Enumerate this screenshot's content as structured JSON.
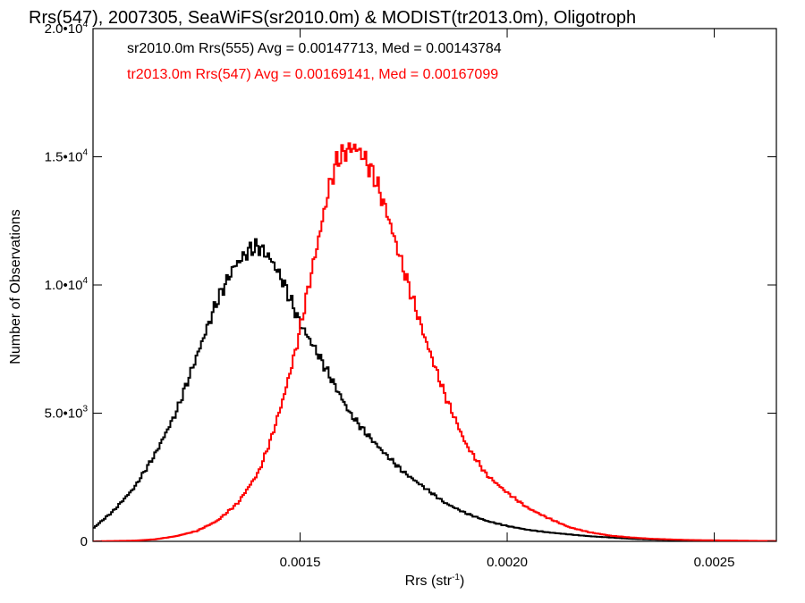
{
  "chart_data": {
    "type": "line",
    "title": "Rrs(547), 2007305, SeaWiFS(sr2010.0m) & MODIST(tr2013.0m), Oligotroph",
    "xlabel": {
      "base": "Rrs (str",
      "sup": "-1",
      "close": ")"
    },
    "ylabel": "Number of Observations",
    "xlim": [
      0.001,
      0.00265
    ],
    "ylim": [
      0,
      20000
    ],
    "x_ticks": [
      {
        "value": 0.0015,
        "label": "0.0015"
      },
      {
        "value": 0.002,
        "label": "0.0020"
      },
      {
        "value": 0.0025,
        "label": "0.0025"
      }
    ],
    "y_ticks": [
      {
        "value": 0,
        "label": "0",
        "mant": "0",
        "exp": ""
      },
      {
        "value": 5000,
        "label": "5.0•10³",
        "mant": "5.0•10",
        "exp": "3"
      },
      {
        "value": 10000,
        "label": "1.0•10⁴",
        "mant": "1.0•10",
        "exp": "4"
      },
      {
        "value": 15000,
        "label": "1.5•10⁴",
        "mant": "1.5•10",
        "exp": "4"
      },
      {
        "value": 20000,
        "label": "2.0•10⁴",
        "mant": "2.0•10",
        "exp": "4"
      }
    ],
    "grid": false,
    "legend_position": "top-left",
    "series": [
      {
        "name": "sr2010.0m Rrs(555)",
        "annotation": "sr2010.0m Rrs(555) Avg = 0.00147713, Med = 0.00143784",
        "color": "#000000",
        "x": [
          0.001,
          0.00105,
          0.0011,
          0.00115,
          0.0012,
          0.00125,
          0.0013,
          0.00134,
          0.00138,
          0.0014,
          0.00143,
          0.00146,
          0.0015,
          0.00154,
          0.00158,
          0.00162,
          0.00166,
          0.0017,
          0.00175,
          0.0018,
          0.00185,
          0.0019,
          0.00195,
          0.002,
          0.00205,
          0.0021,
          0.00215,
          0.0022,
          0.00225,
          0.0023,
          0.00235,
          0.0024,
          0.00245,
          0.0025,
          0.00255,
          0.0026,
          0.00265
        ],
        "y": [
          500,
          1200,
          2100,
          3400,
          5000,
          7200,
          9400,
          10700,
          11400,
          11500,
          11000,
          10100,
          8500,
          7400,
          6200,
          5000,
          4200,
          3500,
          2700,
          2100,
          1500,
          1100,
          800,
          600,
          450,
          350,
          270,
          200,
          150,
          100,
          70,
          50,
          40,
          30,
          20,
          15,
          10
        ]
      },
      {
        "name": "tr2013.0m Rrs(547)",
        "annotation": "tr2013.0m Rrs(547) Avg = 0.00169141, Med = 0.00167099",
        "color": "#ff0000",
        "x": [
          0.001,
          0.0011,
          0.00115,
          0.0012,
          0.00125,
          0.0013,
          0.00135,
          0.0014,
          0.00143,
          0.00146,
          0.00149,
          0.00152,
          0.00155,
          0.00157,
          0.00159,
          0.00161,
          0.00163,
          0.00165,
          0.00168,
          0.00171,
          0.00175,
          0.0018,
          0.00185,
          0.0019,
          0.00195,
          0.002,
          0.00205,
          0.0021,
          0.00215,
          0.0022,
          0.00225,
          0.0023,
          0.00235,
          0.0024,
          0.00245,
          0.0025,
          0.00255,
          0.0026,
          0.00265
        ],
        "y": [
          0,
          30,
          80,
          200,
          400,
          800,
          1500,
          2700,
          4000,
          5600,
          7500,
          9900,
          12200,
          13800,
          14900,
          15200,
          15400,
          15100,
          14200,
          12800,
          10600,
          8000,
          5700,
          3800,
          2600,
          1900,
          1300,
          900,
          550,
          350,
          220,
          150,
          100,
          70,
          50,
          40,
          30,
          20,
          10
        ]
      }
    ]
  }
}
